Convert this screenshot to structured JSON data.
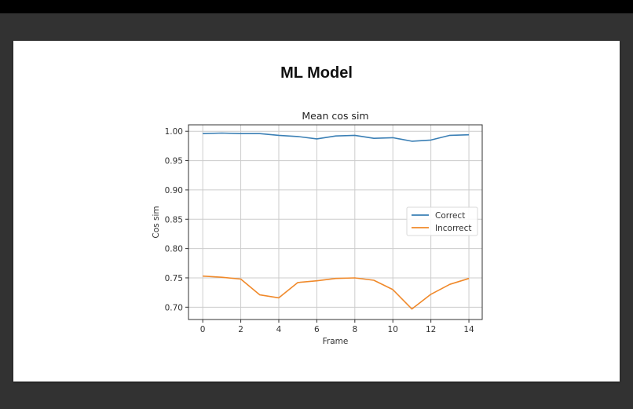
{
  "slide": {
    "title": "ML Model"
  },
  "colors": {
    "correct": "#3a7fb5",
    "incorrect": "#f0892a",
    "grid": "#cccccc",
    "background_outer": "#323232",
    "topbar": "#000000"
  },
  "chart_data": {
    "type": "line",
    "title": "Mean cos sim",
    "xlabel": "Frame",
    "ylabel": "Cos sim",
    "x": [
      0,
      1,
      2,
      3,
      4,
      5,
      6,
      7,
      8,
      9,
      10,
      11,
      12,
      13,
      14
    ],
    "series": [
      {
        "name": "Correct",
        "color": "#3a7fb5",
        "values": [
          0.996,
          0.997,
          0.996,
          0.996,
          0.993,
          0.991,
          0.987,
          0.992,
          0.993,
          0.988,
          0.989,
          0.983,
          0.985,
          0.993,
          0.994
        ]
      },
      {
        "name": "Incorrect",
        "color": "#f0892a",
        "values": [
          0.753,
          0.751,
          0.748,
          0.721,
          0.716,
          0.742,
          0.745,
          0.749,
          0.75,
          0.746,
          0.73,
          0.697,
          0.722,
          0.739,
          0.749
        ]
      }
    ],
    "xticks": [
      0,
      2,
      4,
      6,
      8,
      10,
      12,
      14
    ],
    "xtick_labels": [
      "0",
      "2",
      "4",
      "6",
      "8",
      "10",
      "12",
      "14"
    ],
    "yticks": [
      0.7,
      0.75,
      0.8,
      0.85,
      0.9,
      0.95,
      1.0
    ],
    "ytick_labels": [
      "0.70",
      "0.75",
      "0.80",
      "0.85",
      "0.90",
      "0.95",
      "1.00"
    ],
    "xlim": [
      -0.75,
      14.7
    ],
    "ylim": [
      0.679,
      1.011
    ],
    "grid": true,
    "legend_position": "center right"
  }
}
